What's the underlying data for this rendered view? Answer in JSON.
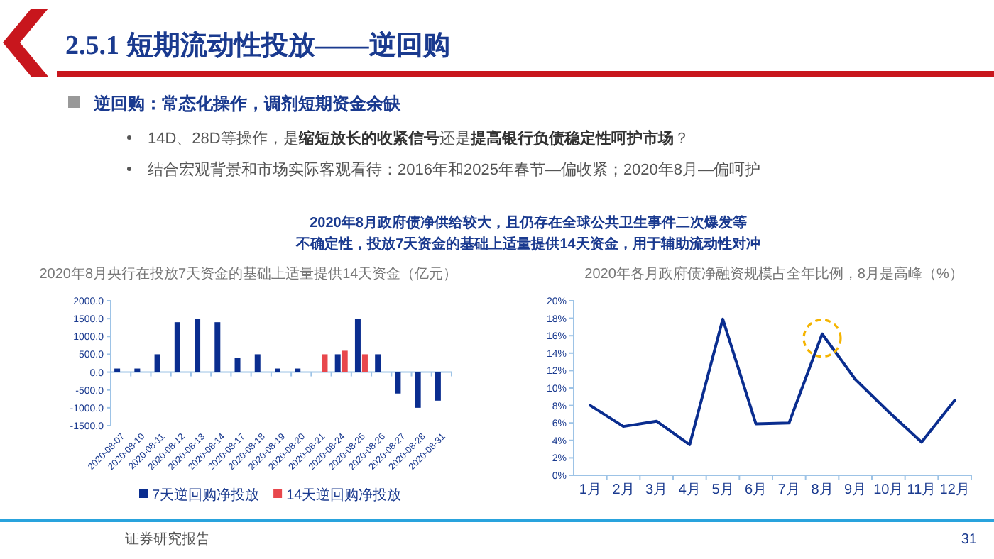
{
  "chart_data": [
    {
      "type": "other",
      "title": "2.5.1 短期流动性投放——逆回购",
      "annotations": [
        "逆回购：常态化操作，调剂短期资金余缺",
        "14D、28D等操作，是**缩短放长的收紧信号**还是**提高银行负债稳定性呵护市场**？",
        "结合宏观背景和市场实际客观看待：2016年和2025年春节—偏收紧；2020年8月—偏呵护",
        "2020年8月政府债净供给较大，且仍存在全球公共卫生事件二次爆发等",
        "不确定性，投放7天资金的基础上适量提供14天资金，用于辅助流动性对冲",
        "证券研究报告",
        "31"
      ]
    },
    {
      "type": "bar",
      "title": "2020年8月央行在投放7天资金的基础上适量提供14天资金（亿元）",
      "categories": [
        "2020-08-07",
        "2020-08-10",
        "2020-08-11",
        "2020-08-12",
        "2020-08-13",
        "2020-08-14",
        "2020-08-17",
        "2020-08-18",
        "2020-08-19",
        "2020-08-20",
        "2020-08-21",
        "2020-08-24",
        "2020-08-25",
        "2020-08-26",
        "2020-08-27",
        "2020-08-28",
        "2020-08-31"
      ],
      "series": [
        {
          "name": "7天逆回购净投放",
          "color": "#0a2d8f",
          "values": [
            100,
            100,
            500,
            1400,
            1500,
            1400,
            400,
            500,
            100,
            100,
            null,
            500,
            1500,
            500,
            -600,
            -1000,
            -800
          ]
        },
        {
          "name": "14天逆回购净投放",
          "color": "#e8474c",
          "values": [
            null,
            null,
            null,
            null,
            null,
            null,
            null,
            null,
            null,
            null,
            500,
            600,
            500,
            null,
            null,
            null,
            null
          ]
        }
      ],
      "ylim": [
        -1500,
        2000
      ],
      "yticks": [
        {
          "value": -1500,
          "label": "-1500.0"
        },
        {
          "value": -1000,
          "label": "-1000.0"
        },
        {
          "value": -500,
          "label": "-500.0"
        },
        {
          "value": 0,
          "label": "0.0"
        },
        {
          "value": 500,
          "label": "500.0"
        },
        {
          "value": 1000,
          "label": "1000.0"
        },
        {
          "value": 1500,
          "label": "1500.0"
        },
        {
          "value": 2000,
          "label": "2000.0"
        }
      ],
      "legend": "bottom",
      "ref_lines": [
        {
          "axis": "y",
          "value": 0,
          "color": "#9dc3e6"
        }
      ]
    },
    {
      "type": "line",
      "title": "2020年各月政府债净融资规模占全年比例，8月是高峰（%）",
      "categories": [
        "1月",
        "2月",
        "3月",
        "4月",
        "5月",
        "6月",
        "7月",
        "8月",
        "9月",
        "10月",
        "11月",
        "12月"
      ],
      "values": [
        8.0,
        5.6,
        6.2,
        3.5,
        17.9,
        5.9,
        6.0,
        16.2,
        11.0,
        7.3,
        3.8,
        8.6
      ],
      "color": "#0a2d8f",
      "ylim": [
        0,
        20
      ],
      "yticks": [
        {
          "value": 0,
          "label": "0%"
        },
        {
          "value": 2,
          "label": "2%"
        },
        {
          "value": 4,
          "label": "4%"
        },
        {
          "value": 6,
          "label": "6%"
        },
        {
          "value": 8,
          "label": "8%"
        },
        {
          "value": 10,
          "label": "10%"
        },
        {
          "value": 12,
          "label": "12%"
        },
        {
          "value": 14,
          "label": "14%"
        },
        {
          "value": 16,
          "label": "16%"
        },
        {
          "value": 18,
          "label": "18%"
        },
        {
          "value": 20,
          "label": "20%"
        }
      ]
    }
  ]
}
